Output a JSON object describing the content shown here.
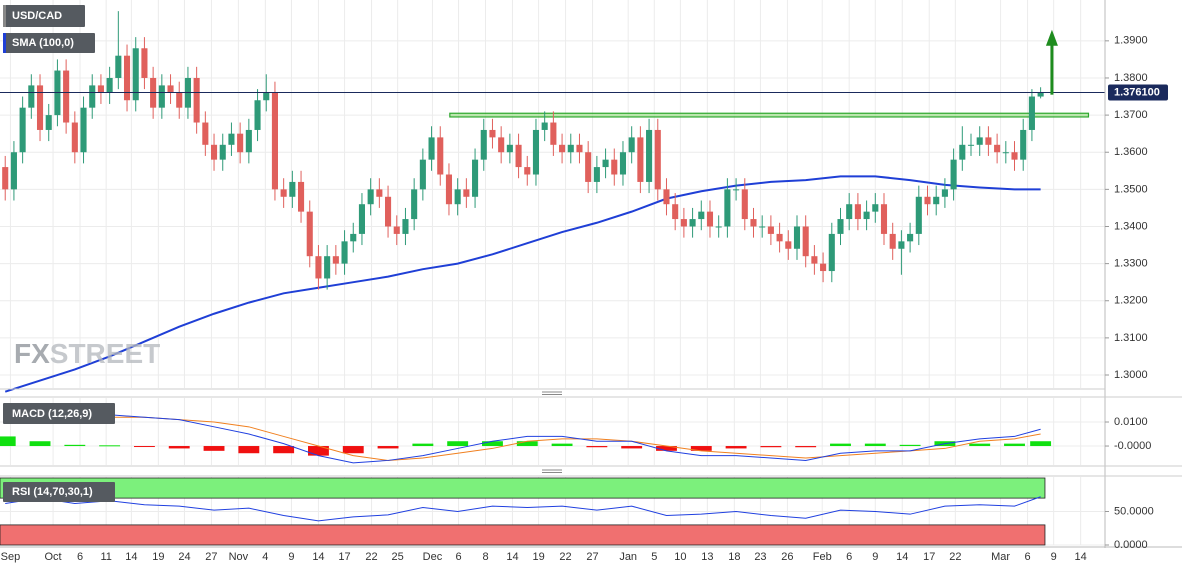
{
  "chart_data": [
    {
      "type": "candlestick",
      "title": "USD/CAD",
      "watermark": [
        "FX",
        "STREET"
      ],
      "candles": [
        [
          1.356,
          1.359,
          1.347,
          1.35
        ],
        [
          1.35,
          1.363,
          1.347,
          1.36
        ],
        [
          1.36,
          1.375,
          1.357,
          1.372
        ],
        [
          1.372,
          1.381,
          1.369,
          1.378
        ],
        [
          1.378,
          1.381,
          1.363,
          1.366
        ],
        [
          1.366,
          1.373,
          1.363,
          1.37
        ],
        [
          1.37,
          1.385,
          1.367,
          1.382
        ],
        [
          1.382,
          1.385,
          1.365,
          1.368
        ],
        [
          1.368,
          1.371,
          1.357,
          1.36
        ],
        [
          1.36,
          1.375,
          1.357,
          1.372
        ],
        [
          1.372,
          1.381,
          1.369,
          1.378
        ],
        [
          1.378,
          1.381,
          1.373,
          1.376
        ],
        [
          1.376,
          1.383,
          1.373,
          1.38
        ],
        [
          1.38,
          1.398,
          1.377,
          1.386
        ],
        [
          1.386,
          1.389,
          1.371,
          1.374
        ],
        [
          1.374,
          1.391,
          1.371,
          1.388
        ],
        [
          1.388,
          1.391,
          1.377,
          1.38
        ],
        [
          1.38,
          1.383,
          1.369,
          1.372
        ],
        [
          1.372,
          1.381,
          1.369,
          1.378
        ],
        [
          1.378,
          1.381,
          1.373,
          1.376
        ],
        [
          1.376,
          1.379,
          1.369,
          1.372
        ],
        [
          1.372,
          1.383,
          1.369,
          1.38
        ],
        [
          1.38,
          1.383,
          1.365,
          1.368
        ],
        [
          1.368,
          1.371,
          1.359,
          1.362
        ],
        [
          1.362,
          1.365,
          1.355,
          1.358
        ],
        [
          1.358,
          1.365,
          1.355,
          1.362
        ],
        [
          1.362,
          1.368,
          1.359,
          1.365
        ],
        [
          1.365,
          1.368,
          1.357,
          1.36
        ],
        [
          1.36,
          1.369,
          1.357,
          1.366
        ],
        [
          1.366,
          1.377,
          1.363,
          1.374
        ],
        [
          1.374,
          1.381,
          1.371,
          1.376
        ],
        [
          1.376,
          1.379,
          1.347,
          1.35
        ],
        [
          1.35,
          1.353,
          1.345,
          1.348
        ],
        [
          1.348,
          1.355,
          1.345,
          1.352
        ],
        [
          1.352,
          1.355,
          1.341,
          1.344
        ],
        [
          1.344,
          1.347,
          1.329,
          1.332
        ],
        [
          1.332,
          1.335,
          1.323,
          1.326
        ],
        [
          1.326,
          1.335,
          1.323,
          1.332
        ],
        [
          1.332,
          1.335,
          1.327,
          1.33
        ],
        [
          1.33,
          1.339,
          1.327,
          1.336
        ],
        [
          1.336,
          1.341,
          1.333,
          1.338
        ],
        [
          1.338,
          1.349,
          1.335,
          1.346
        ],
        [
          1.346,
          1.353,
          1.343,
          1.35
        ],
        [
          1.35,
          1.353,
          1.345,
          1.348
        ],
        [
          1.348,
          1.351,
          1.337,
          1.34
        ],
        [
          1.34,
          1.343,
          1.335,
          1.338
        ],
        [
          1.338,
          1.345,
          1.335,
          1.342
        ],
        [
          1.342,
          1.353,
          1.339,
          1.35
        ],
        [
          1.35,
          1.361,
          1.347,
          1.358
        ],
        [
          1.358,
          1.367,
          1.355,
          1.364
        ],
        [
          1.364,
          1.367,
          1.351,
          1.354
        ],
        [
          1.354,
          1.357,
          1.343,
          1.346
        ],
        [
          1.346,
          1.353,
          1.343,
          1.35
        ],
        [
          1.35,
          1.353,
          1.345,
          1.348
        ],
        [
          1.348,
          1.361,
          1.345,
          1.358
        ],
        [
          1.358,
          1.369,
          1.355,
          1.366
        ],
        [
          1.366,
          1.369,
          1.361,
          1.364
        ],
        [
          1.364,
          1.367,
          1.357,
          1.36
        ],
        [
          1.36,
          1.365,
          1.357,
          1.362
        ],
        [
          1.362,
          1.365,
          1.353,
          1.356
        ],
        [
          1.356,
          1.359,
          1.351,
          1.354
        ],
        [
          1.354,
          1.369,
          1.351,
          1.366
        ],
        [
          1.366,
          1.371,
          1.363,
          1.368
        ],
        [
          1.368,
          1.371,
          1.359,
          1.362
        ],
        [
          1.362,
          1.365,
          1.357,
          1.36
        ],
        [
          1.36,
          1.365,
          1.357,
          1.362
        ],
        [
          1.362,
          1.365,
          1.357,
          1.36
        ],
        [
          1.36,
          1.363,
          1.349,
          1.352
        ],
        [
          1.352,
          1.359,
          1.349,
          1.356
        ],
        [
          1.356,
          1.361,
          1.353,
          1.358
        ],
        [
          1.358,
          1.361,
          1.351,
          1.354
        ],
        [
          1.354,
          1.363,
          1.351,
          1.36
        ],
        [
          1.36,
          1.367,
          1.357,
          1.364
        ],
        [
          1.364,
          1.367,
          1.349,
          1.352
        ],
        [
          1.352,
          1.369,
          1.349,
          1.366
        ],
        [
          1.366,
          1.369,
          1.347,
          1.35
        ],
        [
          1.35,
          1.353,
          1.343,
          1.346
        ],
        [
          1.346,
          1.349,
          1.339,
          1.342
        ],
        [
          1.342,
          1.345,
          1.337,
          1.34
        ],
        [
          1.34,
          1.345,
          1.337,
          1.342
        ],
        [
          1.342,
          1.347,
          1.339,
          1.344
        ],
        [
          1.344,
          1.347,
          1.337,
          1.34
        ],
        [
          1.34,
          1.343,
          1.337,
          1.34
        ],
        [
          1.34,
          1.353,
          1.337,
          1.35
        ],
        [
          1.35,
          1.353,
          1.347,
          1.35
        ],
        [
          1.35,
          1.353,
          1.339,
          1.342
        ],
        [
          1.342,
          1.345,
          1.337,
          1.34
        ],
        [
          1.34,
          1.343,
          1.337,
          1.34
        ],
        [
          1.34,
          1.343,
          1.335,
          1.338
        ],
        [
          1.338,
          1.341,
          1.333,
          1.336
        ],
        [
          1.336,
          1.339,
          1.331,
          1.334
        ],
        [
          1.334,
          1.343,
          1.331,
          1.34
        ],
        [
          1.34,
          1.343,
          1.329,
          1.332
        ],
        [
          1.332,
          1.335,
          1.327,
          1.33
        ],
        [
          1.33,
          1.333,
          1.325,
          1.328
        ],
        [
          1.328,
          1.341,
          1.325,
          1.338
        ],
        [
          1.338,
          1.345,
          1.335,
          1.342
        ],
        [
          1.342,
          1.349,
          1.339,
          1.346
        ],
        [
          1.346,
          1.349,
          1.339,
          1.342
        ],
        [
          1.342,
          1.347,
          1.339,
          1.344
        ],
        [
          1.344,
          1.349,
          1.341,
          1.346
        ],
        [
          1.346,
          1.349,
          1.335,
          1.338
        ],
        [
          1.338,
          1.341,
          1.331,
          1.334
        ],
        [
          1.334,
          1.339,
          1.327,
          1.336
        ],
        [
          1.336,
          1.341,
          1.333,
          1.338
        ],
        [
          1.338,
          1.351,
          1.335,
          1.348
        ],
        [
          1.348,
          1.351,
          1.343,
          1.346
        ],
        [
          1.346,
          1.351,
          1.343,
          1.348
        ],
        [
          1.348,
          1.353,
          1.345,
          1.35
        ],
        [
          1.35,
          1.361,
          1.347,
          1.358
        ],
        [
          1.358,
          1.367,
          1.355,
          1.362
        ],
        [
          1.362,
          1.365,
          1.359,
          1.362
        ],
        [
          1.362,
          1.367,
          1.359,
          1.364
        ],
        [
          1.364,
          1.367,
          1.359,
          1.362
        ],
        [
          1.362,
          1.365,
          1.357,
          1.36
        ],
        [
          1.36,
          1.363,
          1.357,
          1.36
        ],
        [
          1.36,
          1.363,
          1.355,
          1.358
        ],
        [
          1.358,
          1.369,
          1.355,
          1.366
        ],
        [
          1.366,
          1.377,
          1.363,
          1.375
        ],
        [
          1.375,
          1.3775,
          1.3745,
          1.3761
        ]
      ],
      "colors": {
        "up": "#2e9a78",
        "down": "#e0605c"
      },
      "xlim": [
        -0.6,
        126.4
      ],
      "xticks": [
        {
          "value": 0.6,
          "label": "Sep"
        },
        {
          "value": 5.5,
          "label": "Oct"
        },
        {
          "value": 8.6,
          "label": "6"
        },
        {
          "value": 11.6,
          "label": "11"
        },
        {
          "value": 14.5,
          "label": "14"
        },
        {
          "value": 17.6,
          "label": "19"
        },
        {
          "value": 20.6,
          "label": "24"
        },
        {
          "value": 23.7,
          "label": "27"
        },
        {
          "value": 26.8,
          "label": "Nov"
        },
        {
          "value": 29.9,
          "label": "4"
        },
        {
          "value": 32.9,
          "label": "9"
        },
        {
          "value": 36,
          "label": "14"
        },
        {
          "value": 39,
          "label": "17"
        },
        {
          "value": 42.1,
          "label": "22"
        },
        {
          "value": 45.1,
          "label": "25"
        },
        {
          "value": 49.1,
          "label": "Dec"
        },
        {
          "value": 52.1,
          "label": "6"
        },
        {
          "value": 55.2,
          "label": "8"
        },
        {
          "value": 58.3,
          "label": "14"
        },
        {
          "value": 61.3,
          "label": "19"
        },
        {
          "value": 64.4,
          "label": "22"
        },
        {
          "value": 67.5,
          "label": "27"
        },
        {
          "value": 71.6,
          "label": "Jan"
        },
        {
          "value": 74.6,
          "label": "5"
        },
        {
          "value": 77.6,
          "label": "10"
        },
        {
          "value": 80.7,
          "label": "13"
        },
        {
          "value": 83.8,
          "label": "18"
        },
        {
          "value": 86.8,
          "label": "23"
        },
        {
          "value": 89.9,
          "label": "26"
        },
        {
          "value": 93.9,
          "label": "Feb"
        },
        {
          "value": 97,
          "label": "6"
        },
        {
          "value": 100,
          "label": "9"
        },
        {
          "value": 103.1,
          "label": "14"
        },
        {
          "value": 106.2,
          "label": "17"
        },
        {
          "value": 109.2,
          "label": "22"
        },
        {
          "value": 114.4,
          "label": "Mar"
        },
        {
          "value": 117.5,
          "label": "6"
        },
        {
          "value": 120.5,
          "label": "9"
        },
        {
          "value": 123.6,
          "label": "14"
        }
      ],
      "ylim": [
        1.2965,
        1.401
      ],
      "yticks": [
        {
          "value": 1.39,
          "label": "1.3900"
        },
        {
          "value": 1.38,
          "label": "1.3800"
        },
        {
          "value": 1.37,
          "label": "1.3700"
        },
        {
          "value": 1.36,
          "label": "1.3600"
        },
        {
          "value": 1.35,
          "label": "1.3500"
        },
        {
          "value": 1.34,
          "label": "1.3400"
        },
        {
          "value": 1.33,
          "label": "1.3300"
        },
        {
          "value": 1.32,
          "label": "1.3200"
        },
        {
          "value": 1.31,
          "label": "1.3100"
        },
        {
          "value": 1.3,
          "label": "1.3000"
        }
      ],
      "grid": true,
      "overlays": [
        {
          "name": "SMA (100,0)",
          "color": "#1f3fd6",
          "x": [
            0,
            4,
            8,
            12,
            16,
            20,
            24,
            28,
            32,
            36,
            40,
            44,
            48,
            52,
            56,
            60,
            64,
            68,
            72,
            76,
            80,
            84,
            88,
            92,
            96,
            100,
            104,
            108,
            112,
            116,
            119
          ],
          "values": [
            1.2955,
            1.2985,
            1.3015,
            1.305,
            1.309,
            1.313,
            1.3165,
            1.3195,
            1.322,
            1.3235,
            1.325,
            1.3265,
            1.3285,
            1.33,
            1.3325,
            1.3355,
            1.3385,
            1.341,
            1.344,
            1.3475,
            1.3495,
            1.351,
            1.352,
            1.3525,
            1.3535,
            1.3535,
            1.3525,
            1.3512,
            1.3505,
            1.35,
            1.35
          ]
        }
      ],
      "last_price": {
        "value": 1.3761,
        "label": "1.376100",
        "color": "#1a2a5c"
      },
      "resistance": {
        "x": [
          51.1,
          124.5
        ],
        "low": 1.3695,
        "high": 1.3705,
        "color": "#8ad873"
      },
      "arrow": {
        "x": 120.3,
        "from": 1.3755,
        "to": 1.393,
        "color": "#1e8c1e"
      }
    },
    {
      "type": "macd",
      "title": "MACD (12,26,9)",
      "x": [
        0,
        4,
        8,
        12,
        16,
        20,
        24,
        28,
        32,
        36,
        40,
        44,
        48,
        52,
        56,
        60,
        64,
        68,
        72,
        76,
        80,
        84,
        88,
        92,
        96,
        100,
        104,
        108,
        112,
        116,
        119
      ],
      "macd": [
        0.01,
        0.013,
        0.012,
        0.013,
        0.012,
        0.011,
        0.008,
        0.005,
        0.001,
        -0.004,
        -0.007,
        -0.006,
        -0.004,
        -0.001,
        0.002,
        0.004,
        0.004,
        0.002,
        0.002,
        -0.002,
        -0.004,
        -0.004,
        -0.005,
        -0.006,
        -0.003,
        -0.002,
        -0.002,
        0.001,
        0.003,
        0.004,
        0.007
      ],
      "signal": [
        0.01,
        0.011,
        0.012,
        0.012,
        0.012,
        0.011,
        0.01,
        0.008,
        0.004,
        0.0,
        -0.004,
        -0.006,
        -0.005,
        -0.003,
        -0.001,
        0.002,
        0.003,
        0.003,
        0.002,
        0.0,
        -0.002,
        -0.003,
        -0.004,
        -0.005,
        -0.004,
        -0.003,
        -0.002,
        -0.001,
        0.002,
        0.003,
        0.005
      ],
      "histogram": [
        0.004,
        0.002,
        0.0005,
        0.0003,
        -0.0003,
        -0.001,
        -0.002,
        -0.003,
        -0.003,
        -0.004,
        -0.003,
        -0.001,
        0.001,
        0.002,
        0.002,
        0.002,
        0.001,
        -0.0005,
        -0.001,
        -0.002,
        -0.002,
        -0.001,
        -0.0005,
        -0.0005,
        0.001,
        0.001,
        0.0005,
        0.002,
        0.001,
        0.001,
        0.002
      ],
      "colors": {
        "macd": "#2040e0",
        "signal": "#f08020",
        "up": "#10e010",
        "down": "#f01010"
      },
      "ylim": [
        -0.0079,
        0.02
      ],
      "yticks": [
        {
          "value": 0.01,
          "label": "0.0100"
        },
        {
          "value": 0,
          "label": "-0.0000"
        }
      ]
    },
    {
      "type": "rsi",
      "title": "RSI (14,70,30,1)",
      "x": [
        0,
        4,
        8,
        12,
        16,
        20,
        24,
        28,
        32,
        36,
        40,
        44,
        48,
        52,
        56,
        60,
        64,
        68,
        72,
        76,
        80,
        84,
        88,
        92,
        96,
        100,
        104,
        108,
        112,
        116,
        119
      ],
      "values": [
        62,
        70,
        62,
        66,
        60,
        58,
        52,
        55,
        44,
        36,
        42,
        45,
        56,
        50,
        58,
        56,
        58,
        52,
        58,
        44,
        46,
        50,
        44,
        40,
        52,
        50,
        46,
        58,
        60,
        58,
        72
      ],
      "color": "#2040e0",
      "zones": [
        {
          "from": 70,
          "to": 100,
          "color": "#7cf07c"
        },
        {
          "from": 0,
          "to": 30,
          "color": "#f07070"
        }
      ],
      "ylim": [
        0,
        101.5
      ],
      "yticks": [
        {
          "value": 50,
          "label": "50.0000"
        },
        {
          "value": 0,
          "label": "0.0000"
        }
      ]
    }
  ]
}
